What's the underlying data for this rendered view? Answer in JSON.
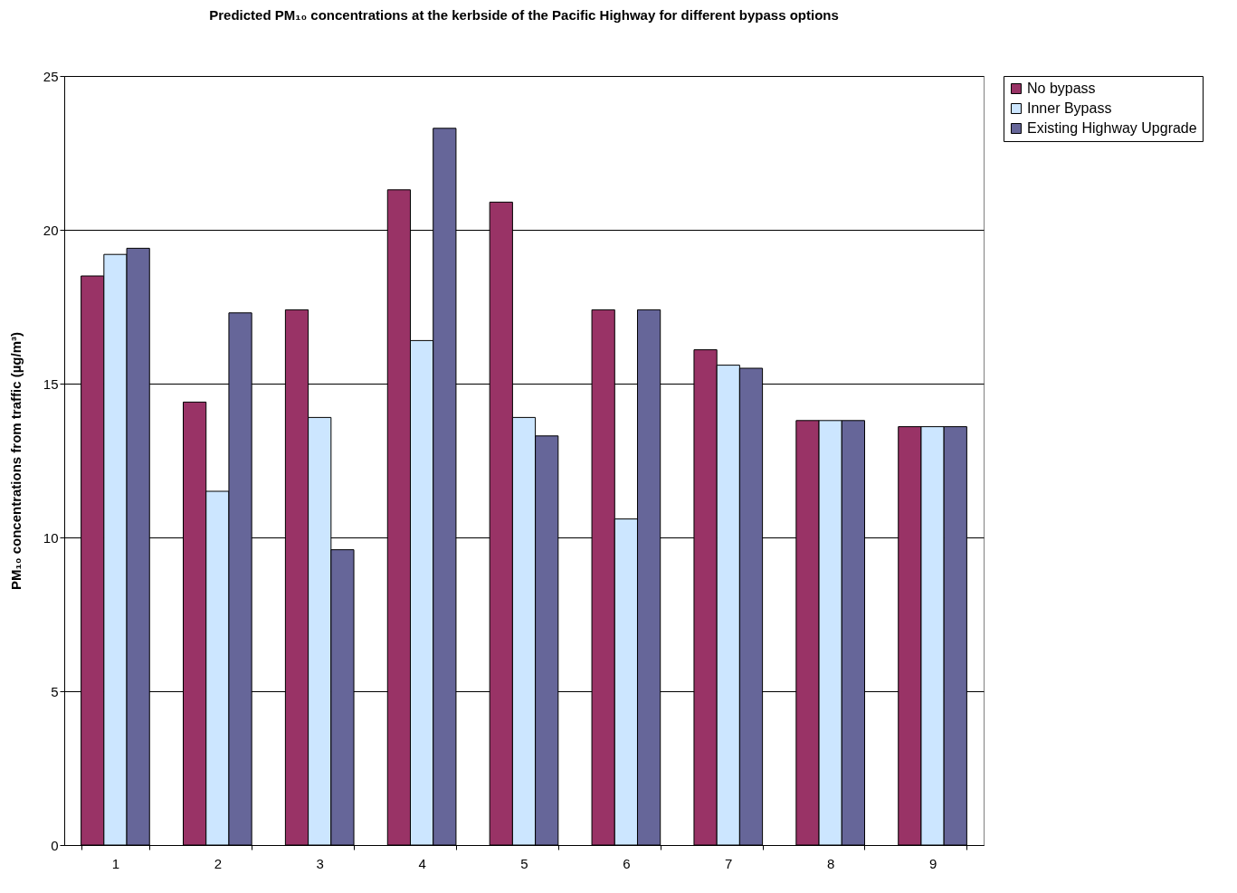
{
  "chart_data": {
    "type": "bar",
    "title": "Predicted PM₁₀ concentrations at the kerbside of the Pacific Highway for different bypass options",
    "ylabel": "PM₁₀ concentrations from traffic (µg/m³)",
    "categories": [
      "1",
      "2",
      "3",
      "4",
      "5",
      "6",
      "7",
      "8",
      "9"
    ],
    "series": [
      {
        "name": "No bypass",
        "color": "#993366",
        "values": [
          18.5,
          14.4,
          17.4,
          21.3,
          20.9,
          17.4,
          16.1,
          13.8,
          13.6
        ]
      },
      {
        "name": "Inner Bypass",
        "color": "#cce6ff",
        "values": [
          19.2,
          11.5,
          13.9,
          16.4,
          13.9,
          10.6,
          15.6,
          13.8,
          13.6
        ]
      },
      {
        "name": "Existing Highway Upgrade",
        "color": "#666699",
        "values": [
          19.4,
          17.3,
          9.6,
          23.3,
          13.3,
          17.4,
          15.5,
          13.8,
          13.6
        ]
      }
    ],
    "ylim": [
      0,
      25
    ],
    "yticks": [
      0,
      5,
      10,
      15,
      20,
      25
    ],
    "grid": "y",
    "legend": "right"
  }
}
